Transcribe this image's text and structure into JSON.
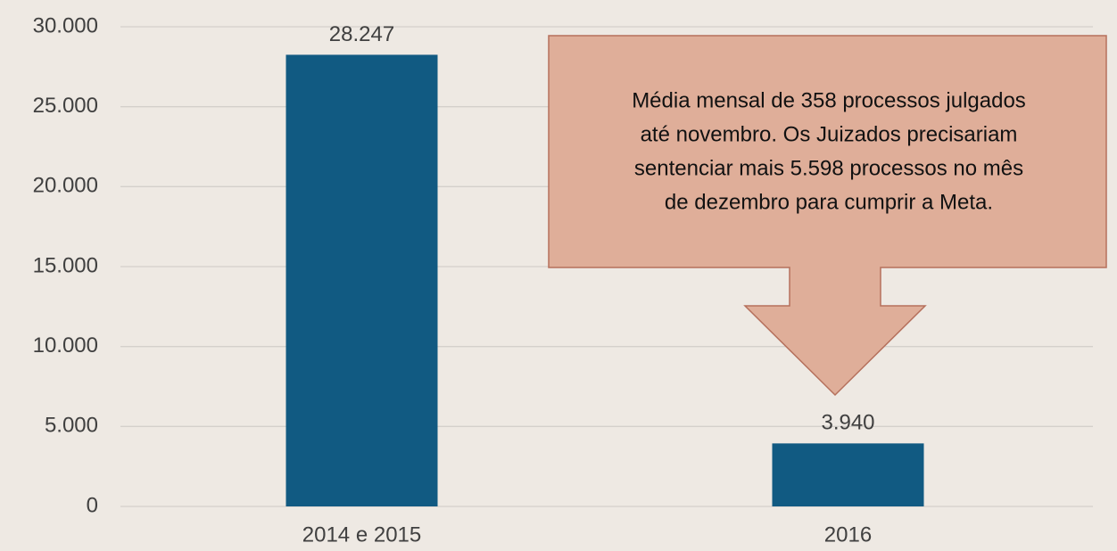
{
  "chart_data": {
    "type": "bar",
    "categories": [
      "2014 e 2015",
      "2016"
    ],
    "values": [
      28247,
      3940
    ],
    "value_labels": [
      "28.247",
      "3.940"
    ],
    "color": "#115a82",
    "ylim": [
      0,
      30000
    ],
    "yticks": [
      0,
      {
        "value": 5000,
        "label": "5.000"
      },
      {
        "value": 10000,
        "label": "10.000"
      },
      {
        "value": 15000,
        "label": "15.000"
      },
      {
        "value": 20000,
        "label": "20.000"
      },
      {
        "value": 25000,
        "label": "25.000"
      },
      {
        "value": 30000,
        "label": "30.000"
      }
    ],
    "grid": true,
    "annotation": [
      "Média mensal de 358 processos julgados",
      "até novembro. Os Juizados precisariam",
      "sentenciar mais 5.598 processos no mês",
      "de dezembro para cumprir a Meta."
    ]
  }
}
